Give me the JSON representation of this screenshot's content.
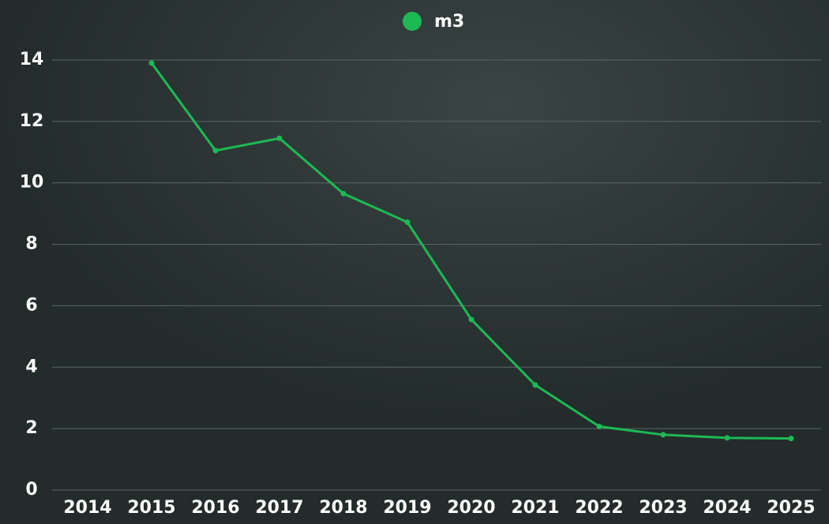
{
  "chart_data": {
    "type": "line",
    "categories": [
      "2014",
      "2015",
      "2016",
      "2017",
      "2018",
      "2019",
      "2020",
      "2021",
      "2022",
      "2023",
      "2024",
      "2025"
    ],
    "series": [
      {
        "name": "m3",
        "color": "#1db954",
        "values": [
          null,
          13.9,
          11.05,
          11.45,
          9.65,
          8.72,
          5.55,
          3.42,
          2.07,
          1.8,
          1.7,
          1.68
        ]
      }
    ],
    "ylim": [
      0,
      14
    ],
    "yticks": [
      0,
      2,
      4,
      6,
      8,
      10,
      12,
      14
    ],
    "grid": true,
    "legend": "top"
  }
}
